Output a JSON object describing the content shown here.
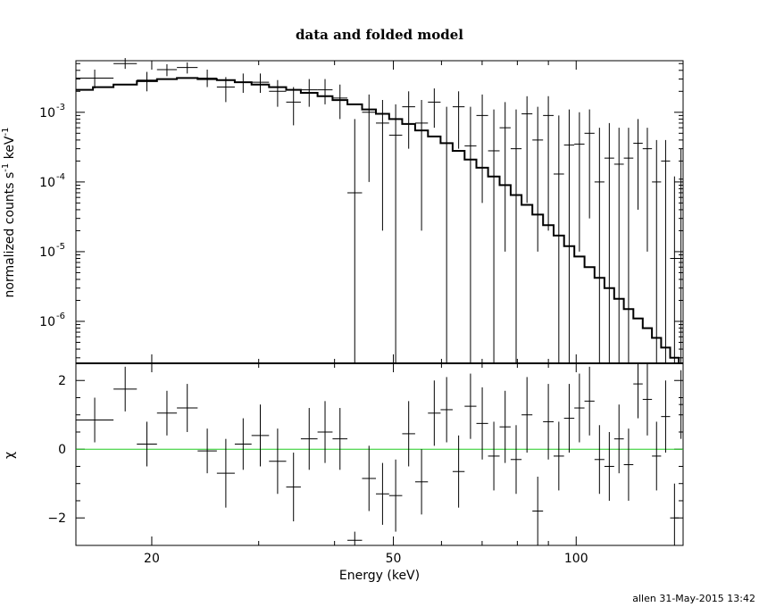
{
  "footer": "allen 31-May-2015 13:42",
  "chart_data": [
    {
      "type": "line",
      "panel": "top",
      "title": "data and folded model",
      "ylabel": "normalized counts s",
      "ylabel_sup1": "-1",
      "ylabel_mid": " keV",
      "ylabel_sup2": "-1",
      "x_scale": "log",
      "y_scale": "log",
      "xlim": [
        15,
        150
      ],
      "ylim": [
        2.5e-07,
        0.0055
      ],
      "y_ticks": [
        {
          "value": 0.001,
          "base": "10",
          "exp": "-3"
        },
        {
          "value": 0.0001,
          "base": "10",
          "exp": "-4"
        },
        {
          "value": 1e-05,
          "base": "10",
          "exp": "-5"
        },
        {
          "value": 1e-06,
          "base": "10",
          "exp": "-6"
        }
      ],
      "series": [
        {
          "style": "crosses",
          "points": [
            {
              "x0": 15.0,
              "x1": 17.3,
              "y": 0.0031,
              "lo": 0.0022,
              "hi": 0.0041
            },
            {
              "x0": 17.3,
              "x1": 18.9,
              "y": 0.005,
              "lo": 0.0042,
              "hi": 0.006
            },
            {
              "x0": 18.9,
              "x1": 20.4,
              "y": 0.0029,
              "lo": 0.002,
              "hi": 0.0038
            },
            {
              "x0": 20.4,
              "x1": 22.0,
              "y": 0.0041,
              "lo": 0.0033,
              "hi": 0.0049
            },
            {
              "x0": 22.0,
              "x1": 23.8,
              "y": 0.0044,
              "lo": 0.0036,
              "hi": 0.0052
            },
            {
              "x0": 23.8,
              "x1": 25.6,
              "y": 0.0031,
              "lo": 0.0023,
              "hi": 0.0041
            },
            {
              "x0": 25.6,
              "x1": 27.4,
              "y": 0.0023,
              "lo": 0.0014,
              "hi": 0.0032
            },
            {
              "x0": 27.4,
              "x1": 29.2,
              "y": 0.0027,
              "lo": 0.0019,
              "hi": 0.0036
            },
            {
              "x0": 29.2,
              "x1": 31.2,
              "y": 0.0027,
              "lo": 0.0019,
              "hi": 0.0036
            },
            {
              "x0": 31.2,
              "x1": 33.3,
              "y": 0.002,
              "lo": 0.0012,
              "hi": 0.0029
            },
            {
              "x0": 33.3,
              "x1": 35.2,
              "y": 0.0014,
              "lo": 0.00065,
              "hi": 0.0023
            },
            {
              "x0": 35.2,
              "x1": 37.5,
              "y": 0.0021,
              "lo": 0.0012,
              "hi": 0.003
            },
            {
              "x0": 37.5,
              "x1": 39.7,
              "y": 0.0021,
              "lo": 0.0013,
              "hi": 0.003
            },
            {
              "x0": 39.7,
              "x1": 42.0,
              "y": 0.0016,
              "lo": 0.0008,
              "hi": 0.0025
            },
            {
              "x0": 42.0,
              "x1": 44.4,
              "y": 7e-05,
              "lo": 2.5e-07,
              "hi": 0.0008
            },
            {
              "x0": 44.4,
              "x1": 46.8,
              "y": 0.001,
              "lo": 0.0001,
              "hi": 0.0018
            },
            {
              "x0": 46.8,
              "x1": 49.2,
              "y": 0.0007,
              "lo": 2e-05,
              "hi": 0.0015
            },
            {
              "x0": 49.2,
              "x1": 51.7,
              "y": 0.00047,
              "lo": 2.5e-07,
              "hi": 0.0013
            },
            {
              "x0": 51.7,
              "x1": 54.3,
              "y": 0.0012,
              "lo": 0.0003,
              "hi": 0.002
            },
            {
              "x0": 54.3,
              "x1": 57.0,
              "y": 0.0007,
              "lo": 2e-05,
              "hi": 0.0015
            },
            {
              "x0": 57.0,
              "x1": 59.8,
              "y": 0.0014,
              "lo": 0.0006,
              "hi": 0.0022
            },
            {
              "x0": 59.8,
              "x1": 62.6,
              "y": 0.00036,
              "lo": 2.5e-07,
              "hi": 0.0012
            },
            {
              "x0": 62.6,
              "x1": 65.5,
              "y": 0.0012,
              "lo": 0.0003,
              "hi": 0.002
            },
            {
              "x0": 65.5,
              "x1": 68.5,
              "y": 0.00033,
              "lo": 2.5e-07,
              "hi": 0.0012
            },
            {
              "x0": 68.5,
              "x1": 71.6,
              "y": 0.0009,
              "lo": 5e-05,
              "hi": 0.0018
            },
            {
              "x0": 71.6,
              "x1": 74.8,
              "y": 0.00028,
              "lo": 2.5e-07,
              "hi": 0.0011
            },
            {
              "x0": 74.8,
              "x1": 78.0,
              "y": 0.0006,
              "lo": 1e-05,
              "hi": 0.0014
            },
            {
              "x0": 78.0,
              "x1": 81.3,
              "y": 0.0003,
              "lo": 2.5e-07,
              "hi": 0.0011
            },
            {
              "x0": 81.3,
              "x1": 84.7,
              "y": 0.00095,
              "lo": 5e-05,
              "hi": 0.0017
            },
            {
              "x0": 84.7,
              "x1": 88.2,
              "y": 0.0004,
              "lo": 1e-05,
              "hi": 0.0012
            },
            {
              "x0": 88.2,
              "x1": 91.8,
              "y": 0.0009,
              "lo": 2e-05,
              "hi": 0.0017
            },
            {
              "x0": 91.8,
              "x1": 95.5,
              "y": 0.00013,
              "lo": 2.5e-07,
              "hi": 0.0009
            },
            {
              "x0": 95.5,
              "x1": 99.3,
              "y": 0.00034,
              "lo": 2.5e-07,
              "hi": 0.0011
            },
            {
              "x0": 99.3,
              "x1": 103.2,
              "y": 0.00035,
              "lo": 1e-05,
              "hi": 0.001
            },
            {
              "x0": 103.2,
              "x1": 107.2,
              "y": 0.0005,
              "lo": 3e-05,
              "hi": 0.0011
            },
            {
              "x0": 107.2,
              "x1": 111.3,
              "y": 0.0001,
              "lo": 2.5e-07,
              "hi": 0.0006
            },
            {
              "x0": 111.3,
              "x1": 115.5,
              "y": 0.00022,
              "lo": 2.5e-07,
              "hi": 0.0007
            },
            {
              "x0": 115.5,
              "x1": 119.8,
              "y": 0.00018,
              "lo": 2.5e-07,
              "hi": 0.0006
            },
            {
              "x0": 119.8,
              "x1": 124.2,
              "y": 0.00022,
              "lo": 2.5e-07,
              "hi": 0.0006
            },
            {
              "x0": 124.2,
              "x1": 128.7,
              "y": 0.00036,
              "lo": 4e-05,
              "hi": 0.0008
            },
            {
              "x0": 128.7,
              "x1": 133.3,
              "y": 0.0003,
              "lo": 1e-05,
              "hi": 0.0006
            },
            {
              "x0": 133.3,
              "x1": 138.0,
              "y": 0.0001,
              "lo": 2.5e-07,
              "hi": 0.0004
            },
            {
              "x0": 138.0,
              "x1": 142.8,
              "y": 0.0002,
              "lo": 2.5e-07,
              "hi": 0.0004
            },
            {
              "x0": 142.8,
              "x1": 147.6,
              "y": 8e-06,
              "lo": 2.5e-07,
              "hi": 0.00012
            },
            {
              "x0": 147.6,
              "x1": 150.0,
              "y": 0.00011,
              "lo": 2.5e-07,
              "hi": 0.0003
            }
          ]
        },
        {
          "style": "model-step",
          "edges": [
            15.0,
            16.0,
            17.3,
            18.9,
            20.4,
            22.0,
            23.8,
            25.6,
            27.4,
            29.2,
            31.2,
            33.3,
            35.2,
            37.5,
            39.7,
            42.0,
            44.4,
            46.8,
            49.2,
            51.7,
            54.3,
            57.0,
            59.8,
            62.6,
            65.5,
            68.5,
            71.6,
            74.8,
            78.0,
            81.3,
            84.7,
            88.2,
            91.8,
            95.5,
            99.3,
            103.2,
            107.2,
            111.3,
            115.5,
            119.8,
            124.2,
            128.7,
            133.3,
            138.0,
            142.8,
            147.6,
            150.0
          ],
          "values": [
            0.0021,
            0.0023,
            0.0025,
            0.0028,
            0.003,
            0.0031,
            0.003,
            0.0029,
            0.0027,
            0.0025,
            0.0023,
            0.0021,
            0.0019,
            0.0017,
            0.0015,
            0.0013,
            0.0011,
            0.00095,
            0.0008,
            0.00068,
            0.00055,
            0.00045,
            0.00036,
            0.00028,
            0.00021,
            0.00016,
            0.00012,
            9e-05,
            6.5e-05,
            4.7e-05,
            3.4e-05,
            2.4e-05,
            1.7e-05,
            1.2e-05,
            8.5e-06,
            6e-06,
            4.2e-06,
            3e-06,
            2.1e-06,
            1.5e-06,
            1.1e-06,
            8e-07,
            5.8e-07,
            4.2e-07,
            3e-07,
            2.5e-07
          ]
        }
      ]
    },
    {
      "type": "line",
      "panel": "bottom",
      "xlabel": "Energy (keV)",
      "ylabel": "χ",
      "x_scale": "log",
      "xlim": [
        15,
        150
      ],
      "ylim": [
        -2.8,
        2.5
      ],
      "y_ticks": [
        2,
        0,
        -2
      ],
      "y_tick_labels": [
        "2",
        "0",
        "−2"
      ],
      "x_ticks": [
        20,
        50,
        100
      ],
      "x_tick_labels": [
        "20",
        "50",
        "100"
      ],
      "zero_line_color": "#22cc22",
      "series": [
        {
          "style": "crosses",
          "points": [
            {
              "x0": 15.0,
              "x1": 17.3,
              "y": 0.85,
              "lo": 0.2,
              "hi": 1.5
            },
            {
              "x0": 17.3,
              "x1": 18.9,
              "y": 1.75,
              "lo": 1.1,
              "hi": 2.4
            },
            {
              "x0": 18.9,
              "x1": 20.4,
              "y": 0.15,
              "lo": -0.5,
              "hi": 0.8
            },
            {
              "x0": 20.4,
              "x1": 22.0,
              "y": 1.05,
              "lo": 0.4,
              "hi": 1.7
            },
            {
              "x0": 22.0,
              "x1": 23.8,
              "y": 1.2,
              "lo": 0.5,
              "hi": 1.9
            },
            {
              "x0": 23.8,
              "x1": 25.6,
              "y": -0.05,
              "lo": -0.7,
              "hi": 0.6
            },
            {
              "x0": 25.6,
              "x1": 27.4,
              "y": -0.7,
              "lo": -1.7,
              "hi": 0.3
            },
            {
              "x0": 27.4,
              "x1": 29.2,
              "y": 0.15,
              "lo": -0.6,
              "hi": 0.9
            },
            {
              "x0": 29.2,
              "x1": 31.2,
              "y": 0.4,
              "lo": -0.5,
              "hi": 1.3
            },
            {
              "x0": 31.2,
              "x1": 33.3,
              "y": -0.35,
              "lo": -1.3,
              "hi": 0.6
            },
            {
              "x0": 33.3,
              "x1": 35.2,
              "y": -1.1,
              "lo": -2.1,
              "hi": -0.1
            },
            {
              "x0": 35.2,
              "x1": 37.5,
              "y": 0.3,
              "lo": -0.6,
              "hi": 1.2
            },
            {
              "x0": 37.5,
              "x1": 39.7,
              "y": 0.5,
              "lo": -0.4,
              "hi": 1.4
            },
            {
              "x0": 39.7,
              "x1": 42.0,
              "y": 0.3,
              "lo": -0.6,
              "hi": 1.2
            },
            {
              "x0": 42.0,
              "x1": 44.4,
              "y": -2.65,
              "lo": -2.8,
              "hi": -2.4
            },
            {
              "x0": 44.4,
              "x1": 46.8,
              "y": -0.85,
              "lo": -1.8,
              "hi": 0.1
            },
            {
              "x0": 46.8,
              "x1": 49.2,
              "y": -1.3,
              "lo": -2.2,
              "hi": -0.4
            },
            {
              "x0": 49.2,
              "x1": 51.7,
              "y": -1.35,
              "lo": -2.4,
              "hi": -0.3
            },
            {
              "x0": 51.7,
              "x1": 54.3,
              "y": 0.45,
              "lo": -0.5,
              "hi": 1.4
            },
            {
              "x0": 54.3,
              "x1": 57.0,
              "y": -0.95,
              "lo": -1.9,
              "hi": 0.0
            },
            {
              "x0": 57.0,
              "x1": 59.8,
              "y": 1.05,
              "lo": 0.1,
              "hi": 2.0
            },
            {
              "x0": 59.8,
              "x1": 62.6,
              "y": 1.15,
              "lo": 0.2,
              "hi": 2.1
            },
            {
              "x0": 62.6,
              "x1": 65.5,
              "y": -0.65,
              "lo": -1.7,
              "hi": 0.4
            },
            {
              "x0": 65.5,
              "x1": 68.5,
              "y": 1.25,
              "lo": 0.3,
              "hi": 2.2
            },
            {
              "x0": 68.5,
              "x1": 71.6,
              "y": 0.75,
              "lo": -0.3,
              "hi": 1.8
            },
            {
              "x0": 71.6,
              "x1": 74.8,
              "y": -0.2,
              "lo": -1.2,
              "hi": 0.8
            },
            {
              "x0": 74.8,
              "x1": 78.0,
              "y": 0.65,
              "lo": -0.4,
              "hi": 1.7
            },
            {
              "x0": 78.0,
              "x1": 81.3,
              "y": -0.3,
              "lo": -1.3,
              "hi": 0.7
            },
            {
              "x0": 81.3,
              "x1": 84.7,
              "y": 1.0,
              "lo": -0.1,
              "hi": 2.1
            },
            {
              "x0": 84.7,
              "x1": 88.2,
              "y": -1.8,
              "lo": -2.8,
              "hi": -0.8
            },
            {
              "x0": 88.2,
              "x1": 91.8,
              "y": 0.8,
              "lo": -0.3,
              "hi": 1.9
            },
            {
              "x0": 91.8,
              "x1": 95.5,
              "y": -0.2,
              "lo": -1.2,
              "hi": 0.8
            },
            {
              "x0": 95.5,
              "x1": 99.3,
              "y": 0.9,
              "lo": -0.1,
              "hi": 1.9
            },
            {
              "x0": 99.3,
              "x1": 103.2,
              "y": 1.2,
              "lo": 0.2,
              "hi": 2.2
            },
            {
              "x0": 103.2,
              "x1": 107.2,
              "y": 1.4,
              "lo": 0.4,
              "hi": 2.4
            },
            {
              "x0": 107.2,
              "x1": 111.3,
              "y": -0.3,
              "lo": -1.3,
              "hi": 0.7
            },
            {
              "x0": 111.3,
              "x1": 115.5,
              "y": -0.5,
              "lo": -1.5,
              "hi": 0.5
            },
            {
              "x0": 115.5,
              "x1": 119.8,
              "y": 0.3,
              "lo": -0.7,
              "hi": 1.3
            },
            {
              "x0": 119.8,
              "x1": 124.2,
              "y": -0.45,
              "lo": -1.5,
              "hi": 0.6
            },
            {
              "x0": 124.2,
              "x1": 128.7,
              "y": 1.9,
              "lo": 0.9,
              "hi": 2.5
            },
            {
              "x0": 128.7,
              "x1": 133.3,
              "y": 1.45,
              "lo": 0.4,
              "hi": 2.5
            },
            {
              "x0": 133.3,
              "x1": 138.0,
              "y": -0.2,
              "lo": -1.2,
              "hi": 0.8
            },
            {
              "x0": 138.0,
              "x1": 142.8,
              "y": 0.95,
              "lo": -0.1,
              "hi": 2.0
            },
            {
              "x0": 142.8,
              "x1": 147.6,
              "y": -2.0,
              "lo": -2.8,
              "hi": -1.0
            },
            {
              "x0": 147.6,
              "x1": 150.0,
              "y": 1.3,
              "lo": 0.3,
              "hi": 2.3
            }
          ]
        }
      ]
    }
  ]
}
